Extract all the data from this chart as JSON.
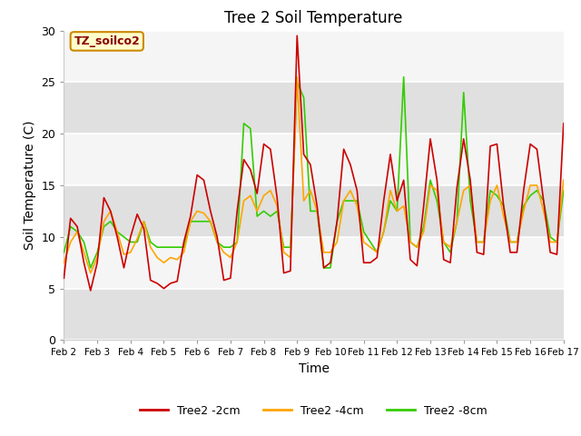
{
  "title": "Tree 2 Soil Temperature",
  "xlabel": "Time",
  "ylabel": "Soil Temperature (C)",
  "annotation": "TZ_soilco2",
  "xlim": [
    0,
    15
  ],
  "ylim": [
    0,
    30
  ],
  "yticks": [
    0,
    5,
    10,
    15,
    20,
    25,
    30
  ],
  "xtick_labels": [
    "Feb 2",
    "Feb 3",
    "Feb 4",
    "Feb 5",
    "Feb 6",
    "Feb 7",
    "Feb 8",
    "Feb 9",
    "Feb 10",
    "Feb 11",
    "Feb 12",
    "Feb 13",
    "Feb 14",
    "Feb 15",
    "Feb 16",
    "Feb 17"
  ],
  "plot_bg": "#e8e8e8",
  "band_colors": [
    "#e8e8e8",
    "#f5f5f5"
  ],
  "series": {
    "2cm": {
      "color": "#cc0000",
      "label": "Tree2 -2cm",
      "values": [
        6.0,
        11.8,
        11.0,
        7.5,
        4.8,
        7.5,
        13.8,
        12.5,
        10.0,
        7.0,
        10.0,
        12.2,
        10.8,
        5.8,
        5.5,
        5.0,
        5.5,
        5.7,
        9.5,
        12.0,
        16.0,
        15.5,
        12.5,
        10.0,
        5.8,
        6.0,
        12.5,
        17.5,
        16.5,
        14.2,
        19.0,
        18.5,
        13.8,
        6.5,
        6.7,
        29.5,
        18.0,
        17.0,
        13.0,
        7.0,
        7.5,
        11.5,
        18.5,
        17.0,
        14.5,
        7.5,
        7.5,
        8.0,
        13.5,
        18.0,
        13.5,
        15.5,
        7.8,
        7.2,
        13.0,
        19.5,
        15.5,
        7.8,
        7.5,
        14.8,
        19.5,
        15.5,
        8.5,
        8.3,
        18.8,
        19.0,
        13.0,
        8.5,
        8.5,
        14.5,
        19.0,
        18.5,
        13.5,
        8.5,
        8.3,
        21.0
      ]
    },
    "4cm": {
      "color": "#ffa500",
      "label": "Tree2 -4cm",
      "values": [
        7.5,
        9.5,
        10.5,
        8.5,
        6.5,
        8.0,
        11.5,
        12.5,
        10.5,
        8.3,
        8.5,
        9.8,
        11.5,
        9.0,
        8.0,
        7.5,
        8.0,
        7.8,
        8.5,
        11.5,
        12.5,
        12.3,
        11.5,
        9.5,
        8.5,
        8.0,
        9.5,
        13.5,
        14.0,
        12.5,
        14.0,
        14.5,
        13.0,
        8.5,
        8.0,
        25.5,
        13.5,
        14.5,
        12.5,
        8.5,
        8.5,
        9.5,
        13.5,
        14.5,
        13.0,
        9.5,
        9.0,
        8.5,
        10.5,
        14.5,
        12.5,
        13.0,
        9.5,
        9.0,
        10.5,
        15.0,
        14.5,
        9.5,
        9.0,
        11.5,
        14.5,
        15.0,
        9.5,
        9.5,
        13.5,
        15.0,
        12.0,
        9.5,
        9.5,
        12.5,
        15.0,
        15.0,
        12.5,
        9.5,
        9.5,
        15.5
      ]
    },
    "8cm": {
      "color": "#33cc00",
      "label": "Tree2 -8cm",
      "values": [
        8.5,
        11.0,
        10.5,
        9.5,
        7.0,
        8.5,
        11.0,
        11.5,
        10.5,
        10.0,
        9.5,
        9.5,
        11.5,
        9.5,
        9.0,
        9.0,
        9.0,
        9.0,
        9.0,
        11.5,
        11.5,
        11.5,
        11.5,
        9.5,
        9.0,
        9.0,
        9.5,
        21.0,
        20.5,
        12.0,
        12.5,
        12.0,
        12.5,
        9.0,
        9.0,
        25.0,
        23.5,
        12.5,
        12.5,
        7.0,
        7.0,
        11.5,
        13.5,
        13.5,
        13.5,
        10.5,
        9.5,
        8.5,
        10.5,
        13.5,
        12.5,
        25.5,
        9.5,
        9.0,
        11.0,
        15.5,
        13.5,
        9.5,
        8.5,
        11.5,
        24.0,
        13.5,
        9.5,
        9.5,
        14.5,
        14.0,
        13.0,
        9.5,
        9.5,
        13.0,
        14.0,
        14.5,
        13.5,
        10.0,
        9.5,
        14.5
      ]
    }
  },
  "n_points": 76,
  "legend_labels": [
    "Tree2 -2cm",
    "Tree2 -4cm",
    "Tree2 -8cm"
  ],
  "legend_colors": [
    "#cc0000",
    "#ffa500",
    "#33cc00"
  ],
  "figsize": [
    6.4,
    4.8
  ],
  "dpi": 100
}
